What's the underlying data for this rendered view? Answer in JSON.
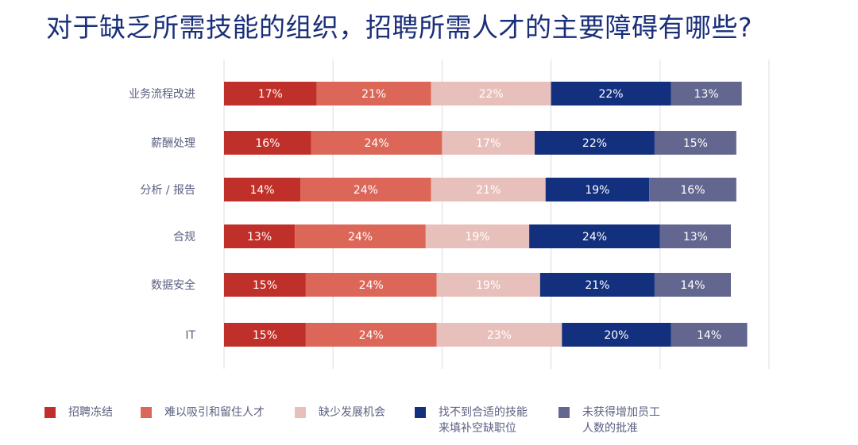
{
  "chart_data": {
    "type": "bar",
    "orientation": "horizontal",
    "stacked": true,
    "title": "对于缺乏所需技能的组织，招聘所需人才的主要障碍有哪些?",
    "categories": [
      "业务流程改进",
      "薪酬处理",
      "分析 / 报告",
      "合规",
      "数据安全",
      "IT"
    ],
    "series": [
      {
        "name": "招聘冻结",
        "color": "#c0302a",
        "values": [
          17,
          16,
          14,
          13,
          15,
          15
        ]
      },
      {
        "name": "难以吸引和留住人才",
        "color": "#dc6758",
        "values": [
          21,
          24,
          24,
          24,
          24,
          24
        ]
      },
      {
        "name": "缺少发展机会",
        "color": "#e8c0bb",
        "values": [
          22,
          17,
          21,
          19,
          19,
          23
        ]
      },
      {
        "name": "找不到合适的技能来填补空缺职位",
        "color": "#13307e",
        "values": [
          22,
          22,
          19,
          24,
          21,
          20
        ]
      },
      {
        "name": "未获得增加员工人数的批准",
        "color": "#636790",
        "values": [
          13,
          15,
          16,
          13,
          14,
          14
        ]
      }
    ],
    "xlim": [
      0,
      100
    ],
    "grid": true,
    "unit": "%",
    "legend_position": "bottom"
  },
  "legend_lines": [
    [
      "招聘冻结"
    ],
    [
      "难以吸引和留住人才"
    ],
    [
      "缺少发展机会"
    ],
    [
      "找不到合适的技能",
      "来填补空缺职位"
    ],
    [
      "未获得增加员工",
      "人数的批准"
    ]
  ]
}
